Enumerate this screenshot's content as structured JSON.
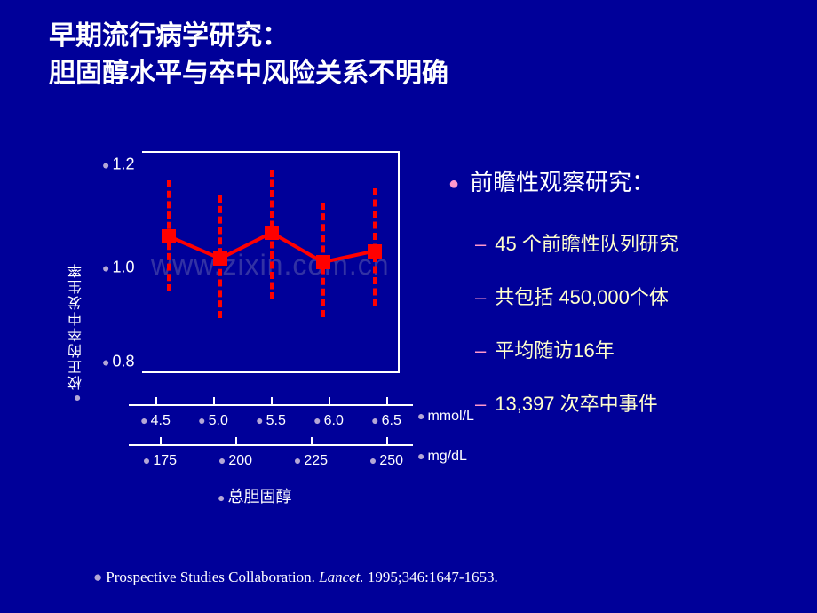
{
  "title_line1": "早期流行病学研究：",
  "title_line2": "胆固醇水平与卒中风险关系不明确",
  "chart": {
    "type": "line-errorbar",
    "y_label": "校正的卒中发生率",
    "y_ticks": [
      "1.2",
      "1.0",
      "0.8"
    ],
    "y_lim": [
      0.7,
      1.3
    ],
    "x_ticks_1": [
      "4.5",
      "5.0",
      "5.5",
      "6.0",
      "6.5"
    ],
    "x_unit_1": "mmol/L",
    "x_ticks_2": [
      "175",
      "200",
      "225",
      "250"
    ],
    "x_unit_2": "mg/dL",
    "x_label": "总胆固醇",
    "series_color": "#ff0000",
    "background_color": "#000099",
    "border_color": "#ffffff",
    "marker_style": "square",
    "marker_size": 16,
    "line_width": 4,
    "error_dash": true,
    "points": [
      {
        "x": 0,
        "y": 1.07,
        "lo": 0.92,
        "hi": 1.22
      },
      {
        "x": 1,
        "y": 1.01,
        "lo": 0.85,
        "hi": 1.18
      },
      {
        "x": 2,
        "y": 1.08,
        "lo": 0.9,
        "hi": 1.25
      },
      {
        "x": 3,
        "y": 1.0,
        "lo": 0.85,
        "hi": 1.16
      },
      {
        "x": 4,
        "y": 1.03,
        "lo": 0.88,
        "hi": 1.2
      }
    ]
  },
  "right": {
    "heading": "前瞻性观察研究：",
    "items": [
      "45 个前瞻性队列研究",
      "共包括 450,000个体",
      "平均随访16年",
      "13,397 次卒中事件"
    ]
  },
  "watermark": "www.zixin.com.cn",
  "citation_pre": "Prospective Studies Collaboration. ",
  "citation_italic": "Lancet.",
  "citation_post": " 1995;346:1647-1653."
}
